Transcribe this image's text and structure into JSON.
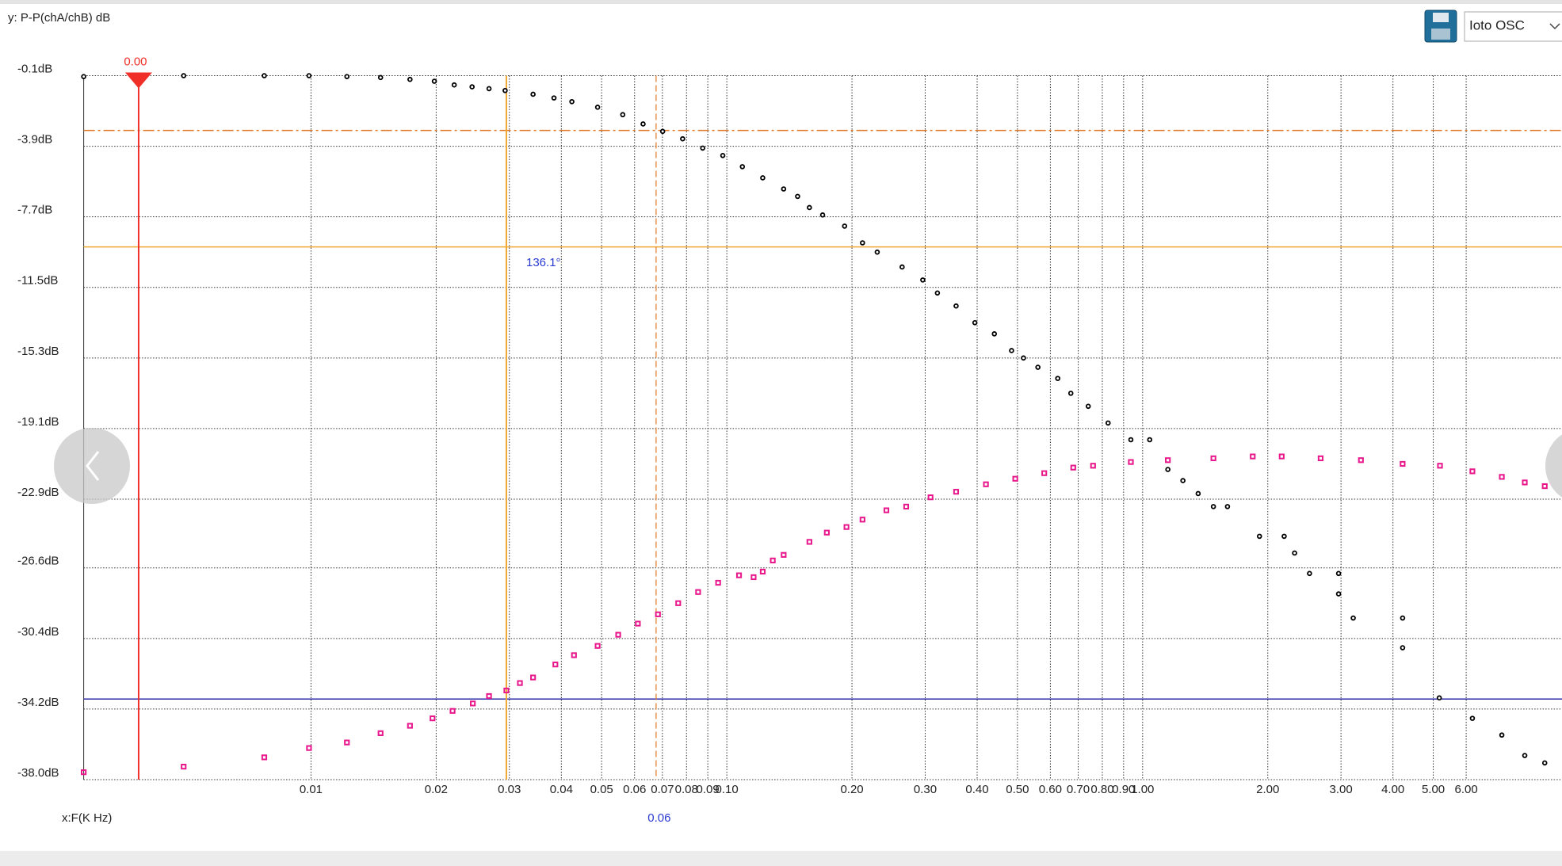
{
  "header": {
    "y_label": "y: P-P(chA/chB) dB",
    "x_label": "x:F(K Hz)",
    "device": "Ioto OSC"
  },
  "chart_data": {
    "type": "scatter",
    "xscale": "log",
    "grid": true,
    "xlim": [
      0.00284,
      10.2
    ],
    "ylim": [
      -38.0,
      -0.1
    ],
    "xticks": [
      0.01,
      0.02,
      0.03,
      0.04,
      0.05,
      0.06,
      {
        "value": 0.07,
        "label": "0.07"
      },
      {
        "value": 0.08,
        "label": "0.08"
      },
      {
        "value": 0.09,
        "label": "0.09"
      },
      {
        "value": 0.1,
        "label": "0.10"
      },
      {
        "value": 0.2,
        "label": "0.20"
      },
      {
        "value": 0.3,
        "label": "0.30"
      },
      {
        "value": 0.4,
        "label": "0.40"
      },
      {
        "value": 0.5,
        "label": "0.50"
      },
      {
        "value": 0.6,
        "label": "0.60"
      },
      {
        "value": 0.7,
        "label": "0.70"
      },
      {
        "value": 0.8,
        "label": "0.80"
      },
      {
        "value": 0.9,
        "label": "0.90"
      },
      {
        "value": 1,
        "label": "1.00"
      },
      {
        "value": 2,
        "label": "2.00"
      },
      {
        "value": 3,
        "label": "3.00"
      },
      {
        "value": 4,
        "label": "4.00"
      },
      {
        "value": 5,
        "label": "5.00"
      },
      {
        "value": 6,
        "label": "6.00"
      }
    ],
    "yticks": [
      {
        "value": -0.1,
        "label": "-0.1dB"
      },
      {
        "value": -3.9,
        "label": "-3.9dB"
      },
      {
        "value": -7.7,
        "label": "-7.7dB"
      },
      {
        "value": -11.5,
        "label": "-11.5dB"
      },
      {
        "value": -15.3,
        "label": "-15.3dB"
      },
      {
        "value": -19.1,
        "label": "-19.1dB"
      },
      {
        "value": -22.9,
        "label": "-22.9dB"
      },
      {
        "value": -26.6,
        "label": "-26.6dB"
      },
      {
        "value": -30.4,
        "label": "-30.4dB"
      },
      {
        "value": -34.2,
        "label": "-34.2dB"
      },
      {
        "value": -38.0,
        "label": "-38.0dB"
      }
    ],
    "x_cursors": [
      {
        "value": 0.00385,
        "color": "#f03028",
        "style": "solid",
        "label": "0.00"
      },
      {
        "value": 0.0295,
        "color": "#f0a830",
        "style": "solid"
      },
      {
        "value": 0.0676,
        "color": "#e07828",
        "style": "dashed",
        "label": "0.06"
      }
    ],
    "y_cursors": [
      {
        "value": -3.05,
        "color": "#e07828",
        "style": "dashed"
      },
      {
        "value": -9.32,
        "color": "#f0a830",
        "style": "solid"
      },
      {
        "value": -33.66,
        "color": "#2a2aa8",
        "style": "solid"
      }
    ],
    "annotation": "136.1°",
    "series": [
      {
        "color": "#000000",
        "marker": "circle",
        "x": [
          0.00284,
          0.00494,
          0.00772,
          0.00989,
          0.0122,
          0.0147,
          0.0173,
          0.0198,
          0.0221,
          0.0244,
          0.0268,
          0.0293,
          0.0342,
          0.0384,
          0.0424,
          0.0489,
          0.0562,
          0.0629,
          0.0701,
          0.0783,
          0.0875,
          0.0978,
          0.109,
          0.122,
          0.137,
          0.148,
          0.158,
          0.17,
          0.192,
          0.212,
          0.23,
          0.264,
          0.296,
          0.321,
          0.356,
          0.395,
          0.44,
          0.484,
          0.517,
          0.56,
          0.625,
          0.672,
          0.74,
          0.826,
          0.937,
          1.04,
          1.15,
          1.25,
          1.36,
          1.48,
          1.6,
          1.91,
          2.19,
          2.32,
          2.52,
          2.96,
          2.96,
          3.21,
          4.22,
          4.22,
          5.17,
          6.21,
          7.31,
          8.3,
          9.27
        ],
        "values": [
          -0.15,
          -0.1,
          -0.1,
          -0.1,
          -0.15,
          -0.2,
          -0.3,
          -0.4,
          -0.6,
          -0.7,
          -0.8,
          -0.9,
          -1.1,
          -1.3,
          -1.5,
          -1.8,
          -2.2,
          -2.7,
          -3.1,
          -3.5,
          -4.0,
          -4.4,
          -5.0,
          -5.6,
          -6.2,
          -6.6,
          -7.2,
          -7.6,
          -8.2,
          -9.1,
          -9.6,
          -10.4,
          -11.1,
          -11.8,
          -12.5,
          -13.4,
          -14.0,
          -14.9,
          -15.3,
          -15.8,
          -16.4,
          -17.2,
          -17.9,
          -18.8,
          -19.7,
          -19.7,
          -21.3,
          -21.9,
          -22.6,
          -23.3,
          -23.3,
          -24.9,
          -24.9,
          -25.8,
          -26.9,
          -26.9,
          -28.0,
          -29.3,
          -29.3,
          -30.9,
          -33.6,
          -34.7,
          -35.6,
          -36.7,
          -37.1
        ]
      },
      {
        "color": "#e8188c",
        "marker": "square",
        "x": [
          0.00284,
          0.00494,
          0.00772,
          0.00989,
          0.0122,
          0.0147,
          0.0173,
          0.0196,
          0.0219,
          0.0245,
          0.0268,
          0.0295,
          0.0318,
          0.0342,
          0.0387,
          0.0429,
          0.0489,
          0.0548,
          0.0611,
          0.0683,
          0.0764,
          0.0853,
          0.0953,
          0.107,
          0.116,
          0.122,
          0.129,
          0.137,
          0.158,
          0.174,
          0.194,
          0.212,
          0.242,
          0.27,
          0.309,
          0.356,
          0.42,
          0.494,
          0.58,
          0.681,
          0.76,
          0.937,
          1.15,
          1.48,
          1.84,
          2.16,
          2.68,
          3.35,
          4.22,
          5.19,
          6.21,
          7.31,
          8.3,
          9.27
        ],
        "values": [
          -37.6,
          -37.3,
          -36.8,
          -36.3,
          -36.0,
          -35.5,
          -35.1,
          -34.7,
          -34.3,
          -33.9,
          -33.5,
          -33.2,
          -32.8,
          -32.5,
          -31.8,
          -31.3,
          -30.8,
          -30.2,
          -29.6,
          -29.1,
          -28.5,
          -27.9,
          -27.4,
          -27.0,
          -27.1,
          -26.8,
          -26.2,
          -25.9,
          -25.2,
          -24.7,
          -24.4,
          -24.0,
          -23.5,
          -23.3,
          -22.8,
          -22.5,
          -22.1,
          -21.8,
          -21.5,
          -21.2,
          -21.1,
          -20.9,
          -20.8,
          -20.7,
          -20.6,
          -20.6,
          -20.7,
          -20.8,
          -21.0,
          -21.1,
          -21.4,
          -21.7,
          -22.0,
          -22.2
        ]
      }
    ]
  }
}
